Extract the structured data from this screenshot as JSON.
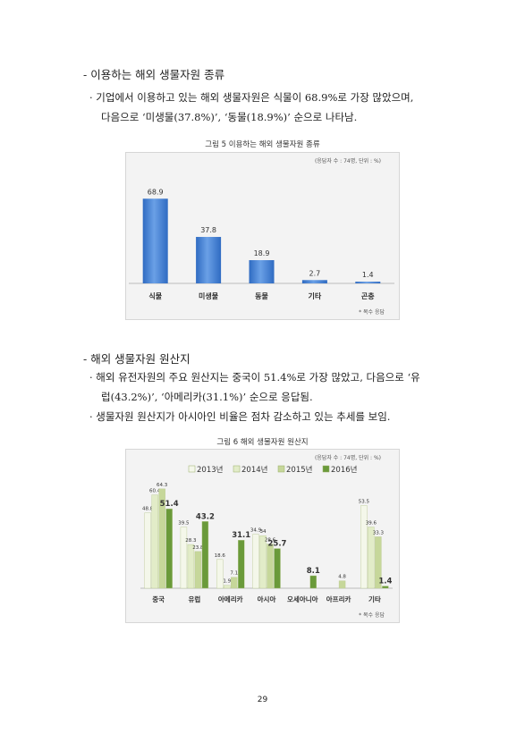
{
  "section1": {
    "heading": "- 이용하는 해외 생물자원 종류",
    "bullet1_line1": "· 기업에서 이용하고 있는 해외 생물자원은 식물이 68.9%로 가장 많았으며,",
    "bullet1_line2": "다음으로 ‘미생물(37.8%)’, ‘동물(18.9%)’ 순으로 나타남."
  },
  "figure5": {
    "caption": "그림 5 이용하는 해외 생물자원 종류",
    "note_top": "(응답자 수 : 74명, 단위 : %)",
    "note_bottom": "* 복수 응답"
  },
  "section2": {
    "heading": "- 해외 생물자원 원산지",
    "bullet1_line1": "· 해외 유전자원의 주요 원산지는 중국이 51.4%로 가장 많았고, 다음으로 ‘유",
    "bullet1_line2": "럽(43.2%)’, ‘아메리카(31.1%)’ 순으로 응답됨.",
    "bullet2": "· 생물자원 원산지가 아시아인 비율은 점차 감소하고 있는 추세를 보임."
  },
  "figure6": {
    "caption": "그림 6 해외 생물자원 원산지",
    "note_top": "(응답자 수 : 74명, 단위 : %)",
    "note_bottom": "* 복수 응답"
  },
  "page_number": "29",
  "chart_data": [
    {
      "type": "bar",
      "categories": [
        "식물",
        "미생물",
        "동물",
        "기타",
        "곤충"
      ],
      "values": [
        68.9,
        37.8,
        18.9,
        2.7,
        1.4
      ],
      "ylim": [
        0,
        80
      ],
      "grid": false,
      "colors": {
        "bar": "#2f6bc2",
        "bar_light": "#6aa0e6"
      }
    },
    {
      "type": "bar",
      "categories": [
        "중국",
        "유럽",
        "아메리카",
        "아시아",
        "오세아니아",
        "아프리카",
        "기타"
      ],
      "series": [
        {
          "name": "2013년",
          "values": [
            48.8,
            39.5,
            18.6,
            34.9,
            null,
            null,
            53.5
          ],
          "color": "#f4f7ea"
        },
        {
          "name": "2014년",
          "values": [
            60.4,
            28.3,
            1.9,
            34,
            null,
            null,
            39.6
          ],
          "color": "#e2ecc8"
        },
        {
          "name": "2015년",
          "values": [
            64.3,
            23.8,
            7.1,
            28.6,
            null,
            4.8,
            33.3
          ],
          "color": "#c6d79a"
        },
        {
          "name": "2016년",
          "values": [
            51.4,
            43.2,
            31.1,
            25.7,
            8.1,
            null,
            1.4
          ],
          "color": "#6a9a3a"
        }
      ],
      "ylim": [
        0,
        70
      ],
      "legend": "top",
      "grid": false
    }
  ]
}
